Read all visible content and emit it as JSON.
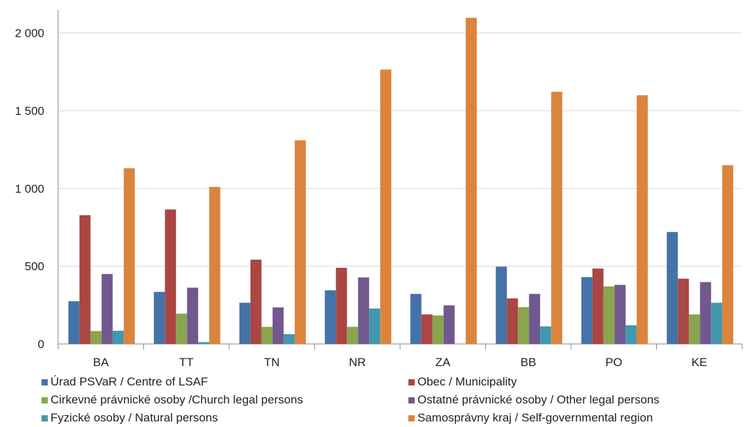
{
  "chart_data": {
    "type": "bar",
    "categories": [
      "BA",
      "TT",
      "TN",
      "NR",
      "ZA",
      "BB",
      "PO",
      "KE"
    ],
    "y_ticks": [
      "0",
      "500",
      "1 000",
      "1 500",
      "2 000"
    ],
    "y_tick_values": [
      0,
      500,
      1000,
      1500,
      2000
    ],
    "ylim": [
      0,
      2150
    ],
    "grid": true,
    "legend_position": "bottom",
    "series": [
      {
        "name": "Úrad PSVaR / Centre of LSAF",
        "color": "#4573A7",
        "values": [
          275,
          335,
          265,
          345,
          322,
          497,
          430,
          720
        ]
      },
      {
        "name": "Obec / Municipality",
        "color": "#AA4643",
        "values": [
          828,
          865,
          542,
          490,
          190,
          293,
          485,
          420
        ]
      },
      {
        "name": "Cirkevné právnické osoby /Church legal persons",
        "color": "#89A54E",
        "values": [
          83,
          195,
          110,
          110,
          183,
          237,
          370,
          190
        ]
      },
      {
        "name": "Ostatné právnické osoby / Other legal persons",
        "color": "#71588F",
        "values": [
          450,
          362,
          235,
          428,
          248,
          322,
          380,
          398
        ]
      },
      {
        "name": "Fyzické osoby / Natural persons",
        "color": "#4198AF",
        "values": [
          85,
          12,
          63,
          228,
          0,
          113,
          120,
          265
        ]
      },
      {
        "name": "Samosprávny kraj / Self-governmental region",
        "color": "#DB843D",
        "values": [
          1130,
          1010,
          1310,
          1765,
          2098,
          1622,
          1600,
          1150
        ]
      }
    ]
  }
}
